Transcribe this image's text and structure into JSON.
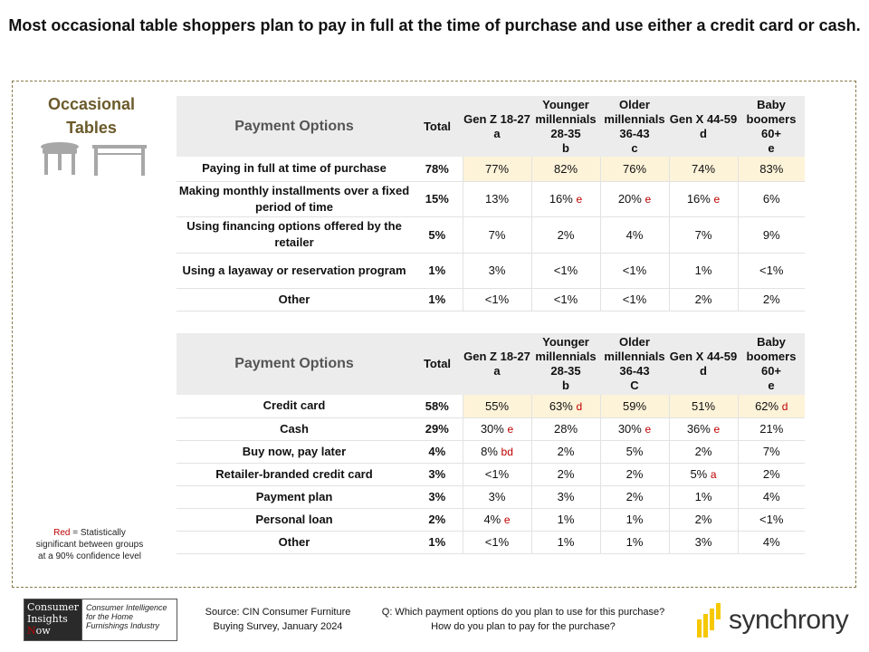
{
  "title": "Most occasional table shoppers plan to pay in full at the time of purchase and use either a credit card or cash.",
  "category": "Occasional Tables",
  "table1": {
    "header_label": "Payment Options",
    "total_label": "Total",
    "columns": [
      {
        "name": "Gen Z 18-27",
        "letter": "a"
      },
      {
        "name": "Younger millennials 28-35",
        "letter": "b"
      },
      {
        "name": "Older millennials 36-43",
        "letter": "c"
      },
      {
        "name": "Gen X 44-59",
        "letter": "d"
      },
      {
        "name": "Baby boomers 60+",
        "letter": "e"
      }
    ],
    "rows": [
      {
        "label": "Paying in full at time of purchase",
        "total": "78%",
        "highlight": true,
        "cells": [
          {
            "v": "77%",
            "s": ""
          },
          {
            "v": "82%",
            "s": ""
          },
          {
            "v": "76%",
            "s": ""
          },
          {
            "v": "74%",
            "s": ""
          },
          {
            "v": "83%",
            "s": ""
          }
        ]
      },
      {
        "label": "Making monthly installments over a fixed period of time",
        "total": "15%",
        "highlight": false,
        "cells": [
          {
            "v": "13%",
            "s": ""
          },
          {
            "v": "16%",
            "s": "e"
          },
          {
            "v": "20%",
            "s": "e"
          },
          {
            "v": "16%",
            "s": "e"
          },
          {
            "v": "6%",
            "s": ""
          }
        ]
      },
      {
        "label": "Using financing options offered by the retailer",
        "total": "5%",
        "highlight": false,
        "cells": [
          {
            "v": "7%",
            "s": ""
          },
          {
            "v": "2%",
            "s": ""
          },
          {
            "v": "4%",
            "s": ""
          },
          {
            "v": "7%",
            "s": ""
          },
          {
            "v": "9%",
            "s": ""
          }
        ]
      },
      {
        "label": "Using a layaway or reservation program",
        "total": "1%",
        "highlight": false,
        "cells": [
          {
            "v": "3%",
            "s": ""
          },
          {
            "v": "<1%",
            "s": ""
          },
          {
            "v": "<1%",
            "s": ""
          },
          {
            "v": "1%",
            "s": ""
          },
          {
            "v": "<1%",
            "s": ""
          }
        ]
      },
      {
        "label": "Other",
        "total": "1%",
        "highlight": false,
        "cells": [
          {
            "v": "<1%",
            "s": ""
          },
          {
            "v": "<1%",
            "s": ""
          },
          {
            "v": "<1%",
            "s": ""
          },
          {
            "v": "2%",
            "s": ""
          },
          {
            "v": "2%",
            "s": ""
          }
        ]
      }
    ]
  },
  "table2": {
    "header_label": "Payment Options",
    "total_label": "Total",
    "columns": [
      {
        "name": "Gen Z 18-27",
        "letter": "a"
      },
      {
        "name": "Younger millennials 28-35",
        "letter": "b"
      },
      {
        "name": "Older millennials 36-43",
        "letter": "C"
      },
      {
        "name": "Gen X 44-59",
        "letter": "d"
      },
      {
        "name": "Baby boomers 60+",
        "letter": "e"
      }
    ],
    "rows": [
      {
        "label": "Credit card",
        "total": "58%",
        "highlight": true,
        "cells": [
          {
            "v": "55%",
            "s": ""
          },
          {
            "v": "63%",
            "s": "d"
          },
          {
            "v": "59%",
            "s": ""
          },
          {
            "v": "51%",
            "s": ""
          },
          {
            "v": "62%",
            "s": "d"
          }
        ]
      },
      {
        "label": "Cash",
        "total": "29%",
        "highlight": false,
        "cells": [
          {
            "v": "30%",
            "s": "e"
          },
          {
            "v": "28%",
            "s": ""
          },
          {
            "v": "30%",
            "s": "e"
          },
          {
            "v": "36%",
            "s": "e"
          },
          {
            "v": "21%",
            "s": ""
          }
        ]
      },
      {
        "label": "Buy now, pay later",
        "total": "4%",
        "highlight": false,
        "cells": [
          {
            "v": "8%",
            "s": "bd"
          },
          {
            "v": "2%",
            "s": ""
          },
          {
            "v": "5%",
            "s": ""
          },
          {
            "v": "2%",
            "s": ""
          },
          {
            "v": "7%",
            "s": ""
          }
        ]
      },
      {
        "label": "Retailer-branded credit card",
        "total": "3%",
        "highlight": false,
        "cells": [
          {
            "v": "<1%",
            "s": ""
          },
          {
            "v": "2%",
            "s": ""
          },
          {
            "v": "2%",
            "s": ""
          },
          {
            "v": "5%",
            "s": "a"
          },
          {
            "v": "2%",
            "s": ""
          }
        ]
      },
      {
        "label": "Payment plan",
        "total": "3%",
        "highlight": false,
        "cells": [
          {
            "v": "3%",
            "s": ""
          },
          {
            "v": "3%",
            "s": ""
          },
          {
            "v": "2%",
            "s": ""
          },
          {
            "v": "1%",
            "s": ""
          },
          {
            "v": "4%",
            "s": ""
          }
        ]
      },
      {
        "label": "Personal loan",
        "total": "2%",
        "highlight": false,
        "cells": [
          {
            "v": "4%",
            "s": "e"
          },
          {
            "v": "1%",
            "s": ""
          },
          {
            "v": "1%",
            "s": ""
          },
          {
            "v": "2%",
            "s": ""
          },
          {
            "v": "<1%",
            "s": ""
          }
        ]
      },
      {
        "label": "Other",
        "total": "1%",
        "highlight": false,
        "cells": [
          {
            "v": "<1%",
            "s": ""
          },
          {
            "v": "1%",
            "s": ""
          },
          {
            "v": "1%",
            "s": ""
          },
          {
            "v": "3%",
            "s": ""
          },
          {
            "v": "4%",
            "s": ""
          }
        ]
      }
    ]
  },
  "legend": {
    "red_word": "Red",
    "text": " = Statistically significant between groups at a 90% confidence level"
  },
  "cin_logo": {
    "line1": "Consumer",
    "line2": "Insights",
    "line3_n": "N",
    "line3_rest": "ow",
    "tagline": "Consumer Intelligence for the Home Furnishings Industry"
  },
  "source": "Source: CIN Consumer Furniture Buying Survey, January 2024",
  "question": "Q: Which payment options do you plan to use for this purchase? How do you plan to pay for the purchase?",
  "brand": "synchrony",
  "colors": {
    "category_title": "#6b5a2a",
    "significance_red": "#c00000",
    "highlight_row": "#fdf3d9",
    "header_bg": "#ececec",
    "brand_yellow": "#f5c800"
  },
  "icons": [
    "round-table-icon",
    "rectangular-table-icon",
    "synchrony-logo-icon"
  ]
}
